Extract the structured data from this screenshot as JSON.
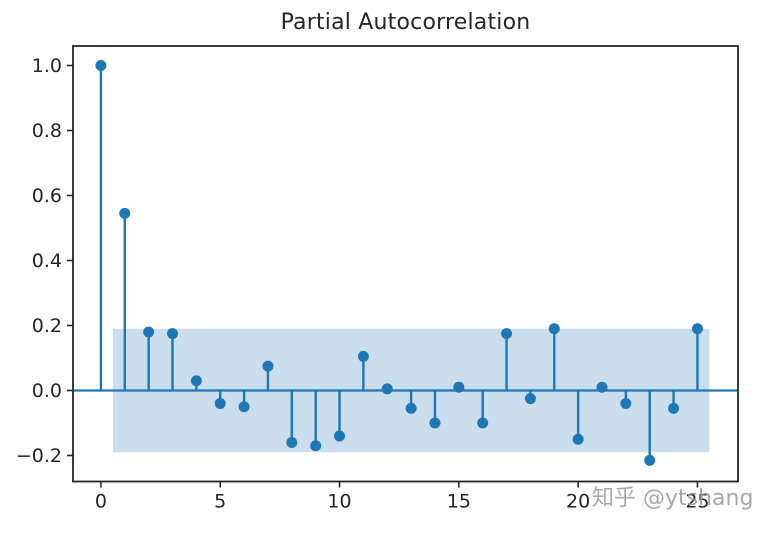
{
  "title": "Partial Autocorrelation",
  "watermark": "知乎 @ytshang",
  "chart_data": {
    "type": "stem",
    "title": "Partial Autocorrelation",
    "xlabel": "",
    "ylabel": "",
    "x": [
      0,
      1,
      2,
      3,
      4,
      5,
      6,
      7,
      8,
      9,
      10,
      11,
      12,
      13,
      14,
      15,
      16,
      17,
      18,
      19,
      20,
      21,
      22,
      23,
      24,
      25
    ],
    "values": [
      1.0,
      0.545,
      0.18,
      0.175,
      0.03,
      -0.04,
      -0.05,
      0.075,
      -0.16,
      -0.17,
      -0.14,
      0.105,
      0.005,
      -0.055,
      -0.1,
      0.01,
      -0.1,
      0.175,
      -0.025,
      0.19,
      -0.15,
      0.01,
      -0.04,
      -0.215,
      -0.055,
      0.19
    ],
    "confidence_band": {
      "upper": 0.19,
      "lower": -0.19,
      "x_start": 0.5,
      "x_end": 25.5
    },
    "zero_line": 0.0,
    "xticks": [
      0,
      5,
      10,
      15,
      20,
      25
    ],
    "xtick_labels": [
      "0",
      "5",
      "10",
      "15",
      "20",
      "25"
    ],
    "yticks": [
      -0.2,
      0.0,
      0.2,
      0.4,
      0.6,
      0.8,
      1.0
    ],
    "ytick_labels": [
      "−0.2",
      "0.0",
      "0.2",
      "0.4",
      "0.6",
      "0.8",
      "1.0"
    ],
    "xlim": [
      -1.17,
      26.7
    ],
    "ylim": [
      -0.28,
      1.06
    ],
    "grid": false,
    "legend": "none",
    "colors": {
      "stem": "#1f77b4",
      "marker": "#1f77b4",
      "band": "#cbdeee",
      "axis": "#262626",
      "tick_label": "#262626",
      "title": "#262626",
      "watermark": "#999999"
    }
  }
}
